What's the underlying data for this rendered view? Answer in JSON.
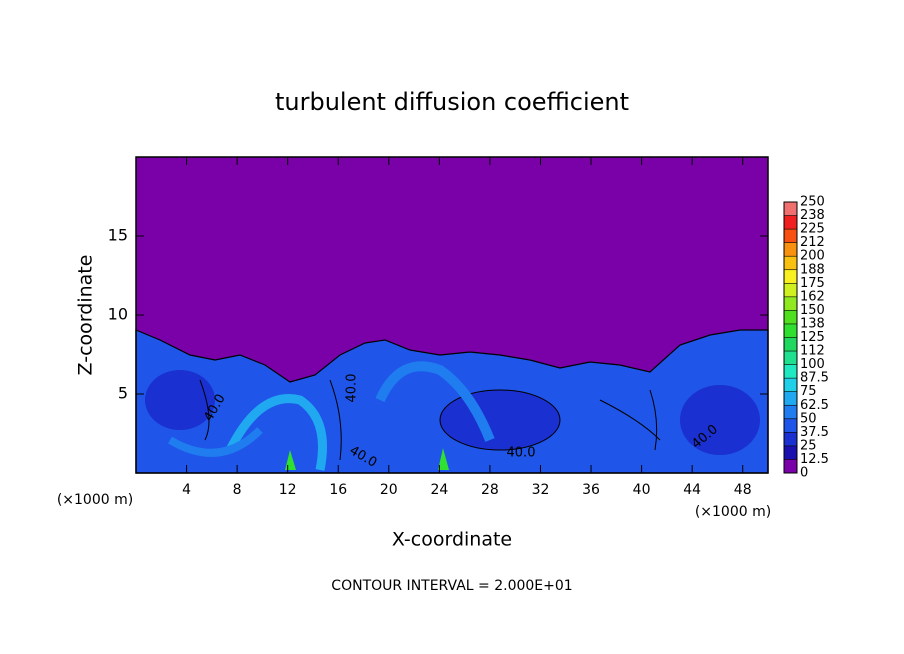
{
  "chart_data": {
    "type": "contour",
    "title": "turbulent diffusion coefficient",
    "x_label": "X-coordinate",
    "y_label": "Z-coordinate",
    "x_unit": "(×1000 m)",
    "footnote": "CONTOUR INTERVAL = 2.000E+01",
    "xlim": [
      0,
      50
    ],
    "ylim": [
      0,
      20
    ],
    "xticks": [
      4,
      8,
      12,
      16,
      20,
      24,
      28,
      32,
      36,
      40,
      44,
      48
    ],
    "yticks": [
      5,
      10,
      15
    ],
    "contour_labels": [
      "40.0",
      "40.0",
      "40.0",
      "40.0",
      "40.0"
    ],
    "colorbar": {
      "levels": [
        0,
        12.5,
        25,
        37.5,
        50,
        62.5,
        75,
        87.5,
        100,
        {
          "value": 112.5,
          "label": "112"
        },
        125,
        {
          "value": 137.5,
          "label": "138"
        },
        150,
        {
          "value": 162.5,
          "label": "162"
        },
        175,
        {
          "value": 187.5,
          "label": "188"
        },
        200,
        {
          "value": 212.5,
          "label": "212"
        },
        225,
        {
          "value": 237.5,
          "label": "238"
        },
        250
      ],
      "colors": [
        "#7a00a8",
        "#1a10b0",
        "#1a30d0",
        "#1f55e8",
        "#1f7df0",
        "#20a8f0",
        "#20d0e8",
        "#20e8c0",
        "#20e090",
        "#20d860",
        "#30e030",
        "#50e020",
        "#90e820",
        "#d0f020",
        "#f8f020",
        "#f8c010",
        "#f89010",
        "#f85010",
        "#f02020",
        "#f07070"
      ]
    }
  }
}
